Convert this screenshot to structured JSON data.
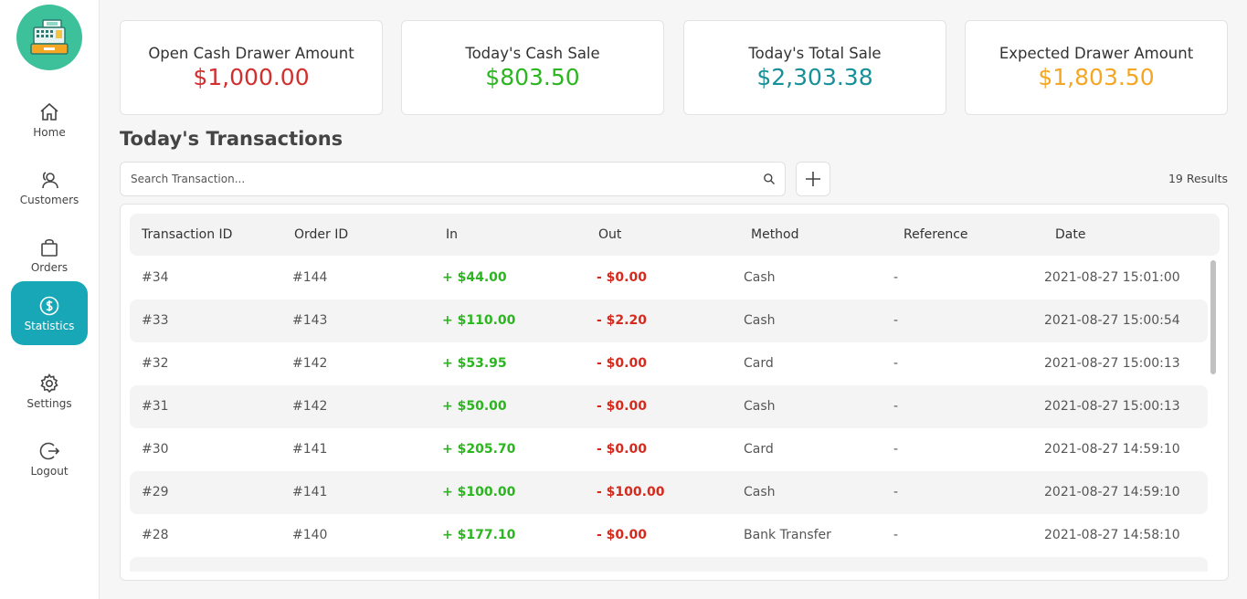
{
  "sidebar": {
    "items": [
      {
        "label": "Home",
        "icon": "home-icon",
        "active": false
      },
      {
        "label": "Customers",
        "icon": "customers-icon",
        "active": false
      },
      {
        "label": "Orders",
        "icon": "bag-icon",
        "active": false
      },
      {
        "label": "Statistics",
        "icon": "dollar-icon",
        "active": true
      },
      {
        "label": "Settings",
        "icon": "gear-icon",
        "active": false
      },
      {
        "label": "Logout",
        "icon": "logout-icon",
        "active": false
      }
    ]
  },
  "stats": [
    {
      "title": "Open Cash Drawer Amount",
      "value": "$1,000.00",
      "color": "#d32f2f"
    },
    {
      "title": "Today's Cash Sale",
      "value": "$803.50",
      "color": "#2bb51f"
    },
    {
      "title": "Today's Total Sale",
      "value": "$2,303.38",
      "color": "#17909a"
    },
    {
      "title": "Expected Drawer Amount",
      "value": "$1,803.50",
      "color": "#f5a623"
    }
  ],
  "transactions": {
    "title": "Today's Transactions",
    "search_placeholder": "Search Transaction...",
    "results": "19 Results",
    "columns": [
      "Transaction ID",
      "Order ID",
      "In",
      "Out",
      "Method",
      "Reference",
      "Date"
    ],
    "rows": [
      {
        "id": "#34",
        "order": "#144",
        "in": "+ $44.00",
        "out": "- $0.00",
        "method": "Cash",
        "ref": "-",
        "date": "2021-08-27 15:01:00"
      },
      {
        "id": "#33",
        "order": "#143",
        "in": "+ $110.00",
        "out": "- $2.20",
        "method": "Cash",
        "ref": "-",
        "date": "2021-08-27 15:00:54"
      },
      {
        "id": "#32",
        "order": "#142",
        "in": "+ $53.95",
        "out": "- $0.00",
        "method": "Card",
        "ref": "-",
        "date": "2021-08-27 15:00:13"
      },
      {
        "id": "#31",
        "order": "#142",
        "in": "+ $50.00",
        "out": "- $0.00",
        "method": "Cash",
        "ref": "-",
        "date": "2021-08-27 15:00:13"
      },
      {
        "id": "#30",
        "order": "#141",
        "in": "+ $205.70",
        "out": "- $0.00",
        "method": "Card",
        "ref": "-",
        "date": "2021-08-27 14:59:10"
      },
      {
        "id": "#29",
        "order": "#141",
        "in": "+ $100.00",
        "out": "- $100.00",
        "method": "Cash",
        "ref": "-",
        "date": "2021-08-27 14:59:10"
      },
      {
        "id": "#28",
        "order": "#140",
        "in": "+ $177.10",
        "out": "- $0.00",
        "method": "Bank Transfer",
        "ref": "-",
        "date": "2021-08-27 14:58:10"
      }
    ]
  },
  "colors": {
    "accent": "#17a7b7",
    "logo": "#3cc19a",
    "in": "#2bb51f",
    "out": "#d52b1e"
  }
}
